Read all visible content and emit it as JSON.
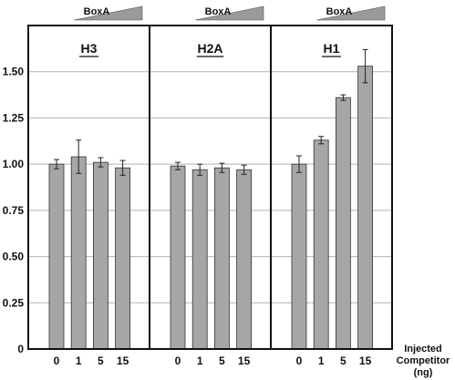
{
  "chart_data": {
    "type": "bar",
    "categories": [
      "0",
      "1",
      "5",
      "15"
    ],
    "ylim": [
      0,
      1.75
    ],
    "yticks": [
      "0",
      "0.25",
      "0.50",
      "0.75",
      "1.00",
      "1.25",
      "1.50"
    ],
    "ytick_values": [
      0,
      0.25,
      0.5,
      0.75,
      1.0,
      1.25,
      1.5
    ],
    "grid": true,
    "bar_color": "#a6a6a6",
    "gradient_label": "BoxA",
    "xlabel": [
      "Injected",
      "Competitor",
      "(ng)"
    ],
    "panels": [
      {
        "title": "H3",
        "values": [
          1.0,
          1.04,
          1.01,
          0.98
        ],
        "errors": [
          0.025,
          0.09,
          0.025,
          0.04
        ]
      },
      {
        "title": "H2A",
        "values": [
          0.99,
          0.97,
          0.98,
          0.97
        ],
        "errors": [
          0.02,
          0.03,
          0.025,
          0.025
        ]
      },
      {
        "title": "H1",
        "values": [
          1.0,
          1.13,
          1.36,
          1.53
        ],
        "errors": [
          0.045,
          0.02,
          0.015,
          0.09
        ]
      }
    ]
  }
}
